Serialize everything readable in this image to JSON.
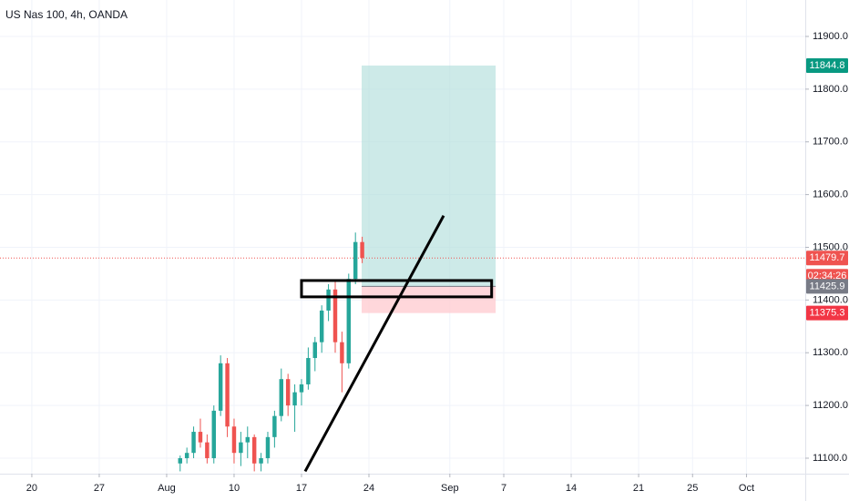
{
  "chart_data": {
    "type": "candlestick",
    "title": "US Nas 100, 4h, OANDA",
    "x": [
      11.0,
      11.5,
      12.0,
      12.5,
      13.0,
      13.5,
      14.0,
      14.5,
      15.0,
      15.5,
      16.0,
      16.5,
      17.0,
      17.5,
      18.0,
      18.5,
      19.0,
      19.5,
      20.0,
      20.5,
      21.0,
      21.5,
      22.0,
      22.5,
      23.0,
      23.5,
      24.0,
      24.5
    ],
    "open": [
      11090,
      11100,
      11110,
      11150,
      11130,
      11100,
      11190,
      11280,
      11160,
      11110,
      11130,
      11140,
      11090,
      11100,
      11140,
      11180,
      11250,
      11200,
      11225,
      11240,
      11290,
      11320,
      11380,
      11420,
      11320,
      11280,
      11440,
      11510
    ],
    "high": [
      11105,
      11120,
      11160,
      11175,
      11145,
      11200,
      11295,
      11290,
      11175,
      11150,
      11160,
      11145,
      11110,
      11150,
      11190,
      11270,
      11260,
      11240,
      11250,
      11310,
      11330,
      11390,
      11430,
      11435,
      11340,
      11450,
      11528,
      11520
    ],
    "low": [
      11075,
      11090,
      11100,
      11120,
      11090,
      11090,
      11180,
      11140,
      11090,
      11085,
      11100,
      11075,
      11075,
      11090,
      11120,
      11170,
      11180,
      11150,
      11200,
      11230,
      11265,
      11300,
      11360,
      11300,
      11225,
      11270,
      11430,
      11470
    ],
    "close": [
      11100,
      11110,
      11150,
      11130,
      11100,
      11190,
      11280,
      11160,
      11110,
      11130,
      11140,
      11090,
      11100,
      11140,
      11180,
      11250,
      11200,
      11225,
      11240,
      11290,
      11320,
      11380,
      11420,
      11320,
      11280,
      11440,
      11510,
      11480
    ],
    "up_color": "#26a69a",
    "down_color": "#ef5350",
    "xlim": [
      -2.36,
      57.36
    ],
    "xticks": [
      {
        "value": 0,
        "label": "20"
      },
      {
        "value": 5,
        "label": "27"
      },
      {
        "value": 10,
        "label": "Aug"
      },
      {
        "value": 15,
        "label": "10"
      },
      {
        "value": 20,
        "label": "17"
      },
      {
        "value": 25,
        "label": "24"
      },
      {
        "value": 31,
        "label": "Sep"
      },
      {
        "value": 35,
        "label": "7"
      },
      {
        "value": 40,
        "label": "14"
      },
      {
        "value": 45,
        "label": "21"
      },
      {
        "value": 49,
        "label": "25"
      },
      {
        "value": 53,
        "label": "Oct"
      }
    ],
    "ylim": [
      11070.6,
      11969.1
    ],
    "yticks": [
      {
        "value": 11100,
        "label": "11100.0"
      },
      {
        "value": 11200,
        "label": "11200.0"
      },
      {
        "value": 11300,
        "label": "11300.0"
      },
      {
        "value": 11400,
        "label": "11400.0"
      },
      {
        "value": 11500,
        "label": "11500.0"
      },
      {
        "value": 11600,
        "label": "11600.0"
      },
      {
        "value": 11700,
        "label": "11700.0"
      },
      {
        "value": 11800,
        "label": "11800.0"
      },
      {
        "value": 11900,
        "label": "11900.0"
      }
    ],
    "last_price": 11479.7,
    "last_price_color": "#ef5350",
    "countdown": "02:34:26",
    "position": {
      "entry": 11425.9,
      "target": 11844.8,
      "stop": 11375.3,
      "x": [
        24.46,
        34.4
      ],
      "profit_color": "#b2dfdb",
      "loss_color": "#ffcdd2",
      "entry_color": "#787b86",
      "target_color": "#089981",
      "stop_color": "#f23645"
    },
    "rectangle": {
      "x": [
        20.0,
        34.1
      ],
      "y": [
        11406,
        11437
      ]
    },
    "trendline": {
      "x": [
        20.27,
        30.54
      ],
      "y": [
        11075,
        11560
      ]
    }
  }
}
